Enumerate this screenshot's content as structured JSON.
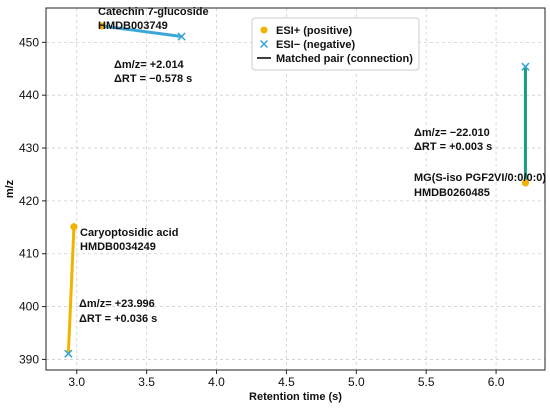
{
  "chart_data": {
    "type": "scatter",
    "title": "",
    "xlabel": "Retention time (s)",
    "ylabel": "m/z",
    "xlim": [
      2.78,
      6.35
    ],
    "ylim": [
      388,
      456.5
    ],
    "xticks": [
      "3.0",
      "3.5",
      "4.0",
      "4.5",
      "5.0",
      "5.5",
      "6.0"
    ],
    "yticks": [
      "390",
      "400",
      "410",
      "420",
      "430",
      "440",
      "450"
    ],
    "grid": true,
    "legend": {
      "placement": "top-right",
      "entries": [
        {
          "label": "ESI+ (positive)",
          "marker": "circle",
          "color": "#f0b400"
        },
        {
          "label": "ESI− (negative)",
          "marker": "x",
          "color": "#3aa7d8"
        },
        {
          "label": "Matched pair (connection)",
          "marker": "line",
          "color": "#111111"
        }
      ]
    },
    "colors": {
      "positive": "#f0b400",
      "negative": "#3aa7d8",
      "pair_catechin": "#3aa7d8",
      "pair_caryoptosidic": "#f0b400",
      "pair_mg": "#1a9c80"
    },
    "pairs": [
      {
        "name_line1": "Catechin 7-glucoside",
        "name_line2": "HMDB003749",
        "positive": {
          "rt": 3.18,
          "mz": 453.1
        },
        "negative": {
          "rt": 3.75,
          "mz": 451.1
        },
        "delta_mz": "Δm/z= +2.014",
        "delta_rt": "ΔRT = −0.578 s",
        "line_color_key": "pair_catechin"
      },
      {
        "name_line1": "Caryoptosidic acid",
        "name_line2": "HMDB0034249",
        "positive": {
          "rt": 2.98,
          "mz": 415.1
        },
        "negative": {
          "rt": 2.94,
          "mz": 391.1
        },
        "delta_mz": "Δm/z= +23.996",
        "delta_rt": "ΔRT = +0.036 s",
        "line_color_key": "pair_caryoptosidic"
      },
      {
        "name_line1": "MG(S-iso PGF2VI/0:0/0:0)",
        "name_line2": "HMDB0260485",
        "positive": {
          "rt": 6.21,
          "mz": 423.4
        },
        "negative": {
          "rt": 6.21,
          "mz": 445.4
        },
        "delta_mz": "Δm/z= −22.010",
        "delta_rt": "ΔRT = +0.003 s",
        "line_color_key": "pair_mg"
      }
    ]
  }
}
